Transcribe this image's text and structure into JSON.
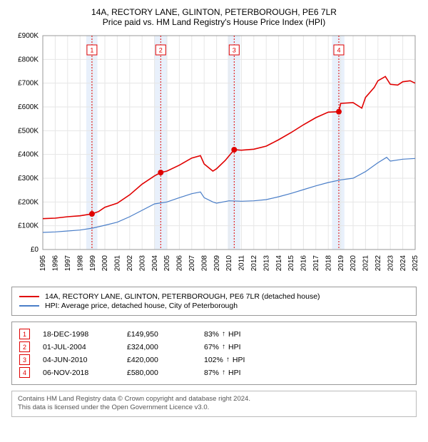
{
  "title_line1": "14A, RECTORY LANE, GLINTON, PETERBOROUGH, PE6 7LR",
  "title_line2": "Price paid vs. HM Land Registry's House Price Index (HPI)",
  "chart": {
    "type": "line",
    "background_color": "#ffffff",
    "grid_color": "#e6e6e6",
    "x": {
      "min": 1995,
      "max": 2025,
      "ticks": [
        1995,
        1996,
        1997,
        1998,
        1999,
        2000,
        2001,
        2002,
        2003,
        2004,
        2005,
        2006,
        2007,
        2008,
        2009,
        2010,
        2011,
        2012,
        2013,
        2014,
        2015,
        2016,
        2017,
        2018,
        2019,
        2020,
        2021,
        2022,
        2023,
        2024,
        2025
      ]
    },
    "y": {
      "min": 0,
      "max": 900000,
      "tick_step": 100000,
      "labels": [
        "£0",
        "£100K",
        "£200K",
        "£300K",
        "£400K",
        "£500K",
        "£600K",
        "£700K",
        "£800K",
        "£900K"
      ]
    },
    "bands": [
      {
        "from": 1998.5,
        "to": 1999.4,
        "color": "#e8f0fb"
      },
      {
        "from": 2004.0,
        "to": 2005.0,
        "color": "#e8f0fb"
      },
      {
        "from": 2009.9,
        "to": 2010.9,
        "color": "#e8f0fb"
      },
      {
        "from": 2018.3,
        "to": 2019.3,
        "color": "#e8f0fb"
      }
    ],
    "series": [
      {
        "name": "property",
        "color": "#e00000",
        "width": 1.6,
        "points": [
          [
            1995,
            130000
          ],
          [
            1996,
            132000
          ],
          [
            1997,
            138000
          ],
          [
            1998,
            142000
          ],
          [
            1998.96,
            149950
          ],
          [
            1999.5,
            160000
          ],
          [
            2000,
            178000
          ],
          [
            2001,
            195000
          ],
          [
            2002,
            230000
          ],
          [
            2003,
            275000
          ],
          [
            2004,
            310000
          ],
          [
            2004.5,
            324000
          ],
          [
            2005,
            330000
          ],
          [
            2006,
            355000
          ],
          [
            2007,
            385000
          ],
          [
            2007.7,
            395000
          ],
          [
            2008,
            360000
          ],
          [
            2008.7,
            330000
          ],
          [
            2009,
            340000
          ],
          [
            2009.7,
            375000
          ],
          [
            2010.42,
            420000
          ],
          [
            2011,
            418000
          ],
          [
            2012,
            422000
          ],
          [
            2013,
            435000
          ],
          [
            2014,
            462000
          ],
          [
            2015,
            492000
          ],
          [
            2016,
            525000
          ],
          [
            2017,
            555000
          ],
          [
            2018,
            578000
          ],
          [
            2018.85,
            580000
          ],
          [
            2019,
            615000
          ],
          [
            2020,
            618000
          ],
          [
            2020.7,
            595000
          ],
          [
            2021,
            640000
          ],
          [
            2021.7,
            682000
          ],
          [
            2022,
            710000
          ],
          [
            2022.6,
            728000
          ],
          [
            2023,
            695000
          ],
          [
            2023.6,
            692000
          ],
          [
            2024,
            706000
          ],
          [
            2024.6,
            710000
          ],
          [
            2025,
            700000
          ]
        ]
      },
      {
        "name": "hpi",
        "color": "#4a7ec8",
        "width": 1.2,
        "points": [
          [
            1995,
            72000
          ],
          [
            1996,
            74000
          ],
          [
            1997,
            78000
          ],
          [
            1998,
            82000
          ],
          [
            1999,
            90000
          ],
          [
            2000,
            102000
          ],
          [
            2001,
            115000
          ],
          [
            2002,
            138000
          ],
          [
            2003,
            165000
          ],
          [
            2004,
            192000
          ],
          [
            2005,
            200000
          ],
          [
            2006,
            218000
          ],
          [
            2007,
            235000
          ],
          [
            2007.7,
            242000
          ],
          [
            2008,
            218000
          ],
          [
            2008.7,
            200000
          ],
          [
            2009,
            195000
          ],
          [
            2010,
            205000
          ],
          [
            2011,
            203000
          ],
          [
            2012,
            205000
          ],
          [
            2013,
            210000
          ],
          [
            2014,
            222000
          ],
          [
            2015,
            236000
          ],
          [
            2016,
            252000
          ],
          [
            2017,
            268000
          ],
          [
            2018,
            282000
          ],
          [
            2019,
            293000
          ],
          [
            2020,
            300000
          ],
          [
            2021,
            328000
          ],
          [
            2022,
            365000
          ],
          [
            2022.7,
            388000
          ],
          [
            2023,
            372000
          ],
          [
            2024,
            380000
          ],
          [
            2025,
            383000
          ]
        ]
      }
    ],
    "event_markers": [
      {
        "n": "1",
        "x": 1998.96,
        "y": 149950,
        "label_x": 1998.96,
        "label_y": 840000
      },
      {
        "n": "2",
        "x": 2004.5,
        "y": 324000,
        "label_x": 2004.5,
        "label_y": 840000
      },
      {
        "n": "3",
        "x": 2010.42,
        "y": 420000,
        "label_x": 2010.42,
        "label_y": 840000
      },
      {
        "n": "4",
        "x": 2018.85,
        "y": 580000,
        "label_x": 2018.85,
        "label_y": 840000
      }
    ],
    "marker_dot_color": "#e00000",
    "marker_box_border": "#e00000",
    "vline_color": "#e00000",
    "vline_dash": "2,2"
  },
  "legend": {
    "items": [
      {
        "color": "#e00000",
        "label": "14A, RECTORY LANE, GLINTON, PETERBOROUGH, PE6 7LR (detached house)"
      },
      {
        "color": "#4a7ec8",
        "label": "HPI: Average price, detached house, City of Peterborough"
      }
    ]
  },
  "events": [
    {
      "n": "1",
      "date": "18-DEC-1998",
      "price": "£149,950",
      "pct": "83%",
      "dir": "↑",
      "suffix": "HPI"
    },
    {
      "n": "2",
      "date": "01-JUL-2004",
      "price": "£324,000",
      "pct": "67%",
      "dir": "↑",
      "suffix": "HPI"
    },
    {
      "n": "3",
      "date": "04-JUN-2010",
      "price": "£420,000",
      "pct": "102%",
      "dir": "↑",
      "suffix": "HPI"
    },
    {
      "n": "4",
      "date": "06-NOV-2018",
      "price": "£580,000",
      "pct": "87%",
      "dir": "↑",
      "suffix": "HPI"
    }
  ],
  "event_marker_border": "#e00000",
  "event_marker_text_color": "#e00000",
  "notice_line1": "Contains HM Land Registry data © Crown copyright and database right 2024.",
  "notice_line2": "This data is licensed under the Open Government Licence v3.0."
}
